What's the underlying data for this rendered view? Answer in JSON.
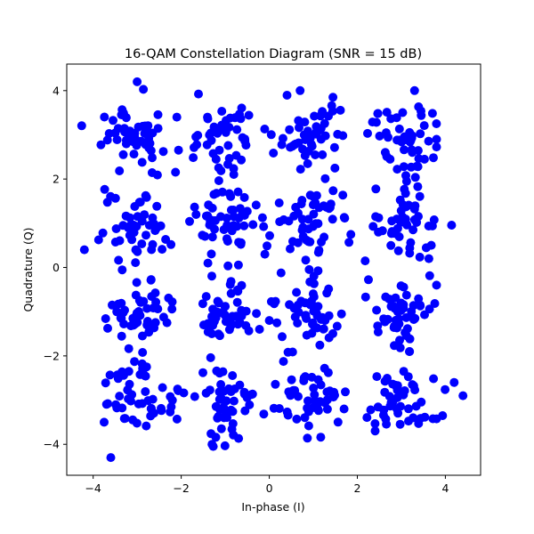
{
  "chart_data": {
    "type": "scatter",
    "title": "16-QAM Constellation Diagram (SNR = 15 dB)",
    "xlabel": "In-phase (I)",
    "ylabel": "Quadrature (Q)",
    "xlim": [
      -4.6,
      4.8
    ],
    "ylim": [
      -4.7,
      4.6
    ],
    "xticks": [
      -4,
      -2,
      0,
      2,
      4
    ],
    "yticks": [
      -4,
      -2,
      0,
      2,
      4
    ],
    "xtick_labels": [
      "−4",
      "−2",
      "0",
      "2",
      "4"
    ],
    "ytick_labels": [
      "−4",
      "−2",
      "0",
      "2",
      "4"
    ],
    "grid": false,
    "legend": null,
    "marker_color": "#0000ff",
    "marker_size_px": 10,
    "constellation_points": [
      [
        -3,
        3
      ],
      [
        -1,
        3
      ],
      [
        1,
        3
      ],
      [
        3,
        3
      ],
      [
        -3,
        1
      ],
      [
        -1,
        1
      ],
      [
        1,
        1
      ],
      [
        3,
        1
      ],
      [
        -3,
        -1
      ],
      [
        -1,
        -1
      ],
      [
        1,
        -1
      ],
      [
        3,
        -1
      ],
      [
        -3,
        -3
      ],
      [
        -1,
        -3
      ],
      [
        1,
        -3
      ],
      [
        3,
        -3
      ]
    ],
    "noise_sigma": 0.4,
    "points_per_symbol": 50,
    "notable_points": [
      {
        "x": -4.2,
        "y": 0.4
      },
      {
        "x": 4.2,
        "y": -2.6
      },
      {
        "x": 4.4,
        "y": -2.9
      },
      {
        "x": -3.6,
        "y": -4.3
      },
      {
        "x": -3.0,
        "y": 4.2
      },
      {
        "x": 0.7,
        "y": 4.0
      },
      {
        "x": 3.3,
        "y": 4.0
      },
      {
        "x": -2.1,
        "y": 3.4
      },
      {
        "x": -0.1,
        "y": 0.3
      },
      {
        "x": 0.0,
        "y": -1.2
      },
      {
        "x": 3.8,
        "y": -0.4
      },
      {
        "x": 3.8,
        "y": 2.9
      },
      {
        "x": -1.3,
        "y": -4.0
      },
      {
        "x": 1.7,
        "y": -3.2
      }
    ]
  },
  "figure": {
    "background": "#ffffff",
    "axes_color": "#000000"
  }
}
